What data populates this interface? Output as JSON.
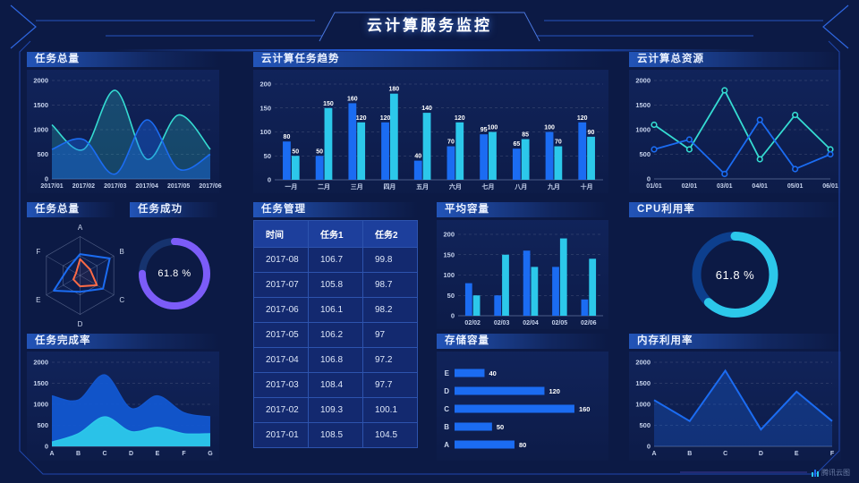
{
  "header": {
    "title": "云计算服务监控"
  },
  "watermark": {
    "label": "腾讯云图"
  },
  "colors": {
    "blue": "#1b6cf2",
    "deep_blue": "#1257d0",
    "cyan": "#2cc8ea",
    "teal": "#35dcd2",
    "purple": "#7c5cf8",
    "orange": "#ff6a45",
    "donut_track_dark": "#16336e",
    "donut_track_blue": "#0d3f8d",
    "axis_text": "#c6d2ec",
    "bg": "#0c1a45",
    "frame": "#2b5fd4"
  },
  "panels": {
    "task_total_area": {
      "title": "任务总量"
    },
    "cloud_task_trend": {
      "title": "云计算任务趋势"
    },
    "cloud_total_resource": {
      "title": "云计算总资源"
    },
    "task_total_radar": {
      "title": "任务总量"
    },
    "task_success": {
      "title": "任务成功",
      "value": "61.8 %"
    },
    "task_manage": {
      "title": "任务管理"
    },
    "avg_capacity": {
      "title": "平均容量"
    },
    "cpu_usage": {
      "title": "CPU利用率",
      "value": "61.8 %"
    },
    "task_complete_rate": {
      "title": "任务完成率"
    },
    "storage_capacity": {
      "title": "存储容量"
    },
    "memory_usage": {
      "title": "内存利用率"
    }
  },
  "table": {
    "headers": [
      "时间",
      "任务1",
      "任务2"
    ],
    "rows": [
      [
        "2017-08",
        "106.7",
        "99.8"
      ],
      [
        "2017-07",
        "105.8",
        "98.7"
      ],
      [
        "2017-06",
        "106.1",
        "98.2"
      ],
      [
        "2017-05",
        "106.2",
        "97"
      ],
      [
        "2017-04",
        "106.8",
        "97.2"
      ],
      [
        "2017-03",
        "108.4",
        "97.7"
      ],
      [
        "2017-02",
        "109.3",
        "100.1"
      ],
      [
        "2017-01",
        "108.5",
        "104.5"
      ]
    ]
  },
  "chart_data": [
    {
      "id": "task_total_area",
      "type": "area",
      "smooth": true,
      "x": [
        "2017/01",
        "2017/02",
        "2017/03",
        "2017/04",
        "2017/05",
        "2017/06"
      ],
      "ylim": [
        0,
        2000
      ],
      "yticks": [
        0,
        500,
        1000,
        1500,
        2000
      ],
      "series": [
        {
          "name": "series1",
          "color": "teal",
          "values": [
            1100,
            600,
            1800,
            400,
            1300,
            600
          ],
          "alpha": 0.22
        },
        {
          "name": "series2",
          "color": "blue",
          "values": [
            600,
            800,
            100,
            1200,
            200,
            500
          ],
          "alpha": 0.38
        }
      ]
    },
    {
      "id": "cloud_task_trend",
      "type": "bar",
      "show_labels": true,
      "categories": [
        "一月",
        "二月",
        "三月",
        "四月",
        "五月",
        "六月",
        "七月",
        "八月",
        "九月",
        "十月"
      ],
      "ylim": [
        0,
        200
      ],
      "yticks": [
        0,
        50,
        100,
        150,
        200
      ],
      "series": [
        {
          "name": "任务1",
          "color": "blue",
          "values": [
            80,
            50,
            160,
            120,
            40,
            70,
            95,
            65,
            100,
            120
          ]
        },
        {
          "name": "任务2",
          "color": "cyan",
          "values": [
            50,
            150,
            120,
            180,
            140,
            120,
            100,
            85,
            70,
            90
          ]
        }
      ]
    },
    {
      "id": "cloud_total_resource",
      "type": "line",
      "markers": true,
      "x": [
        "01/01",
        "02/01",
        "03/01",
        "04/01",
        "05/01",
        "06/01"
      ],
      "ylim": [
        0,
        2000
      ],
      "yticks": [
        0,
        500,
        1000,
        1500,
        2000
      ],
      "series": [
        {
          "name": "series1",
          "color": "teal",
          "values": [
            1100,
            600,
            1800,
            400,
            1300,
            600
          ]
        },
        {
          "name": "series2",
          "color": "blue",
          "values": [
            600,
            800,
            100,
            1200,
            200,
            500
          ]
        }
      ]
    },
    {
      "id": "task_total_radar",
      "type": "radar",
      "axes": [
        "A",
        "B",
        "C",
        "D",
        "E",
        "F"
      ],
      "series": [
        {
          "name": "outer",
          "color": "blue",
          "values": [
            0.55,
            0.88,
            0.68,
            0.42,
            0.78,
            0.36
          ]
        },
        {
          "name": "inner",
          "color": "orange",
          "values": [
            0.42,
            0.3,
            0.5,
            0.28,
            0.2,
            0.12
          ]
        }
      ]
    },
    {
      "id": "task_success",
      "type": "donut",
      "value": 61.8,
      "arc_pct": 75,
      "color": "purple",
      "track": "donut_track_dark"
    },
    {
      "id": "avg_capacity",
      "type": "bar",
      "show_labels": false,
      "categories": [
        "02/02",
        "02/03",
        "02/04",
        "02/05",
        "02/06"
      ],
      "ylim": [
        0,
        200
      ],
      "yticks": [
        0,
        50,
        100,
        150,
        200
      ],
      "series": [
        {
          "name": "series1",
          "color": "blue",
          "values": [
            80,
            50,
            160,
            120,
            40
          ]
        },
        {
          "name": "series2",
          "color": "cyan",
          "values": [
            50,
            150,
            120,
            190,
            140
          ]
        }
      ]
    },
    {
      "id": "cpu_usage",
      "type": "donut",
      "value": 61.8,
      "arc_pct": 62,
      "color": "cyan",
      "track": "donut_track_blue"
    },
    {
      "id": "task_complete_rate",
      "type": "area",
      "smooth": true,
      "x": [
        "A",
        "B",
        "C",
        "D",
        "E",
        "F",
        "G"
      ],
      "ylim": [
        0,
        2000
      ],
      "yticks": [
        0,
        500,
        1000,
        1500,
        2000
      ],
      "series": [
        {
          "name": "total",
          "color": "deep_blue",
          "values": [
            1200,
            1100,
            1700,
            900,
            1200,
            800,
            700
          ],
          "alpha": 0.95,
          "width": 1.4
        },
        {
          "name": "partial",
          "color": "cyan",
          "values": [
            100,
            300,
            700,
            350,
            450,
            300,
            300
          ],
          "alpha": 0.95,
          "width": 1.4
        }
      ]
    },
    {
      "id": "storage_capacity",
      "type": "hbar",
      "color": "blue",
      "xmax": 172,
      "categories": [
        "E",
        "D",
        "C",
        "B",
        "A"
      ],
      "values": [
        40,
        120,
        160,
        50,
        80
      ]
    },
    {
      "id": "memory_usage",
      "type": "area",
      "smooth": false,
      "x": [
        "A",
        "B",
        "C",
        "D",
        "E",
        "F"
      ],
      "ylim": [
        0,
        2000
      ],
      "yticks": [
        0,
        500,
        1000,
        1500,
        2000
      ],
      "series": [
        {
          "name": "memory",
          "color": "blue",
          "values": [
            1100,
            600,
            1800,
            400,
            1300,
            600
          ],
          "alpha": 0.28,
          "width": 2
        }
      ]
    }
  ]
}
